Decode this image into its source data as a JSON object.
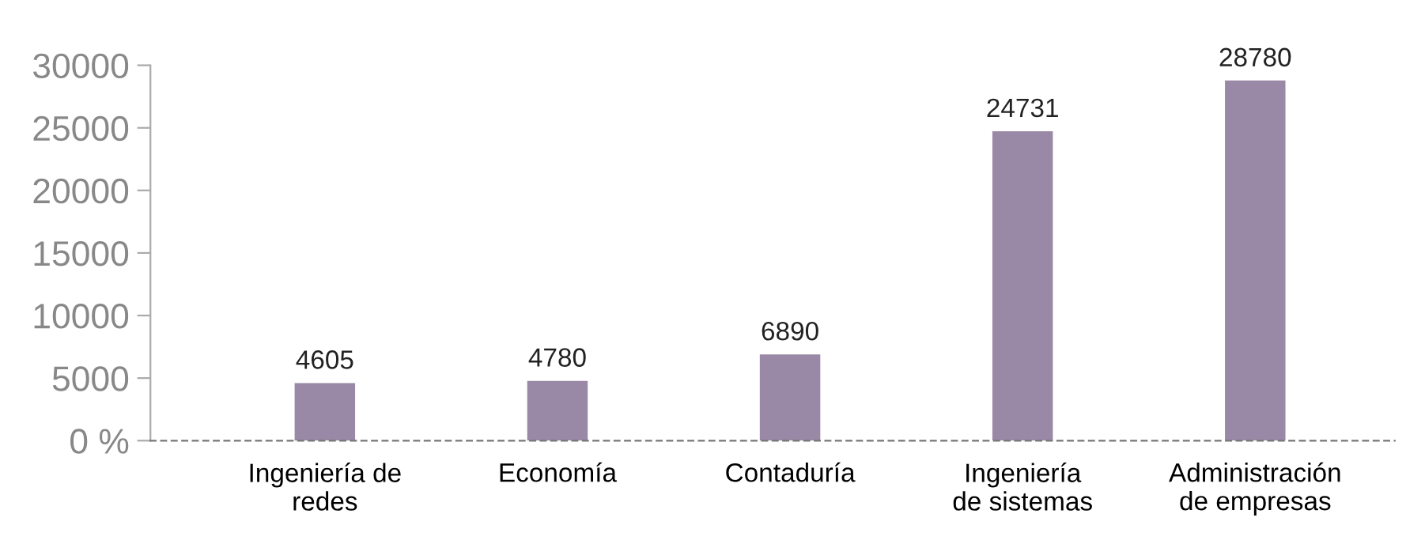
{
  "chart_data": {
    "type": "bar",
    "categories": [
      "Ingeniería de\nredes",
      "Economía",
      "Contaduría",
      "Ingeniería\nde sistemas",
      "Administración\nde empresas"
    ],
    "values": [
      4605,
      4780,
      6890,
      24731,
      28780
    ],
    "color": "#9a89a6",
    "ylim": [
      0,
      30000
    ],
    "yticks": [
      {
        "value": 0,
        "label": "0 %"
      },
      5000,
      10000,
      15000,
      20000,
      25000,
      30000
    ],
    "data_labels": true,
    "grid": false,
    "legend": false
  }
}
